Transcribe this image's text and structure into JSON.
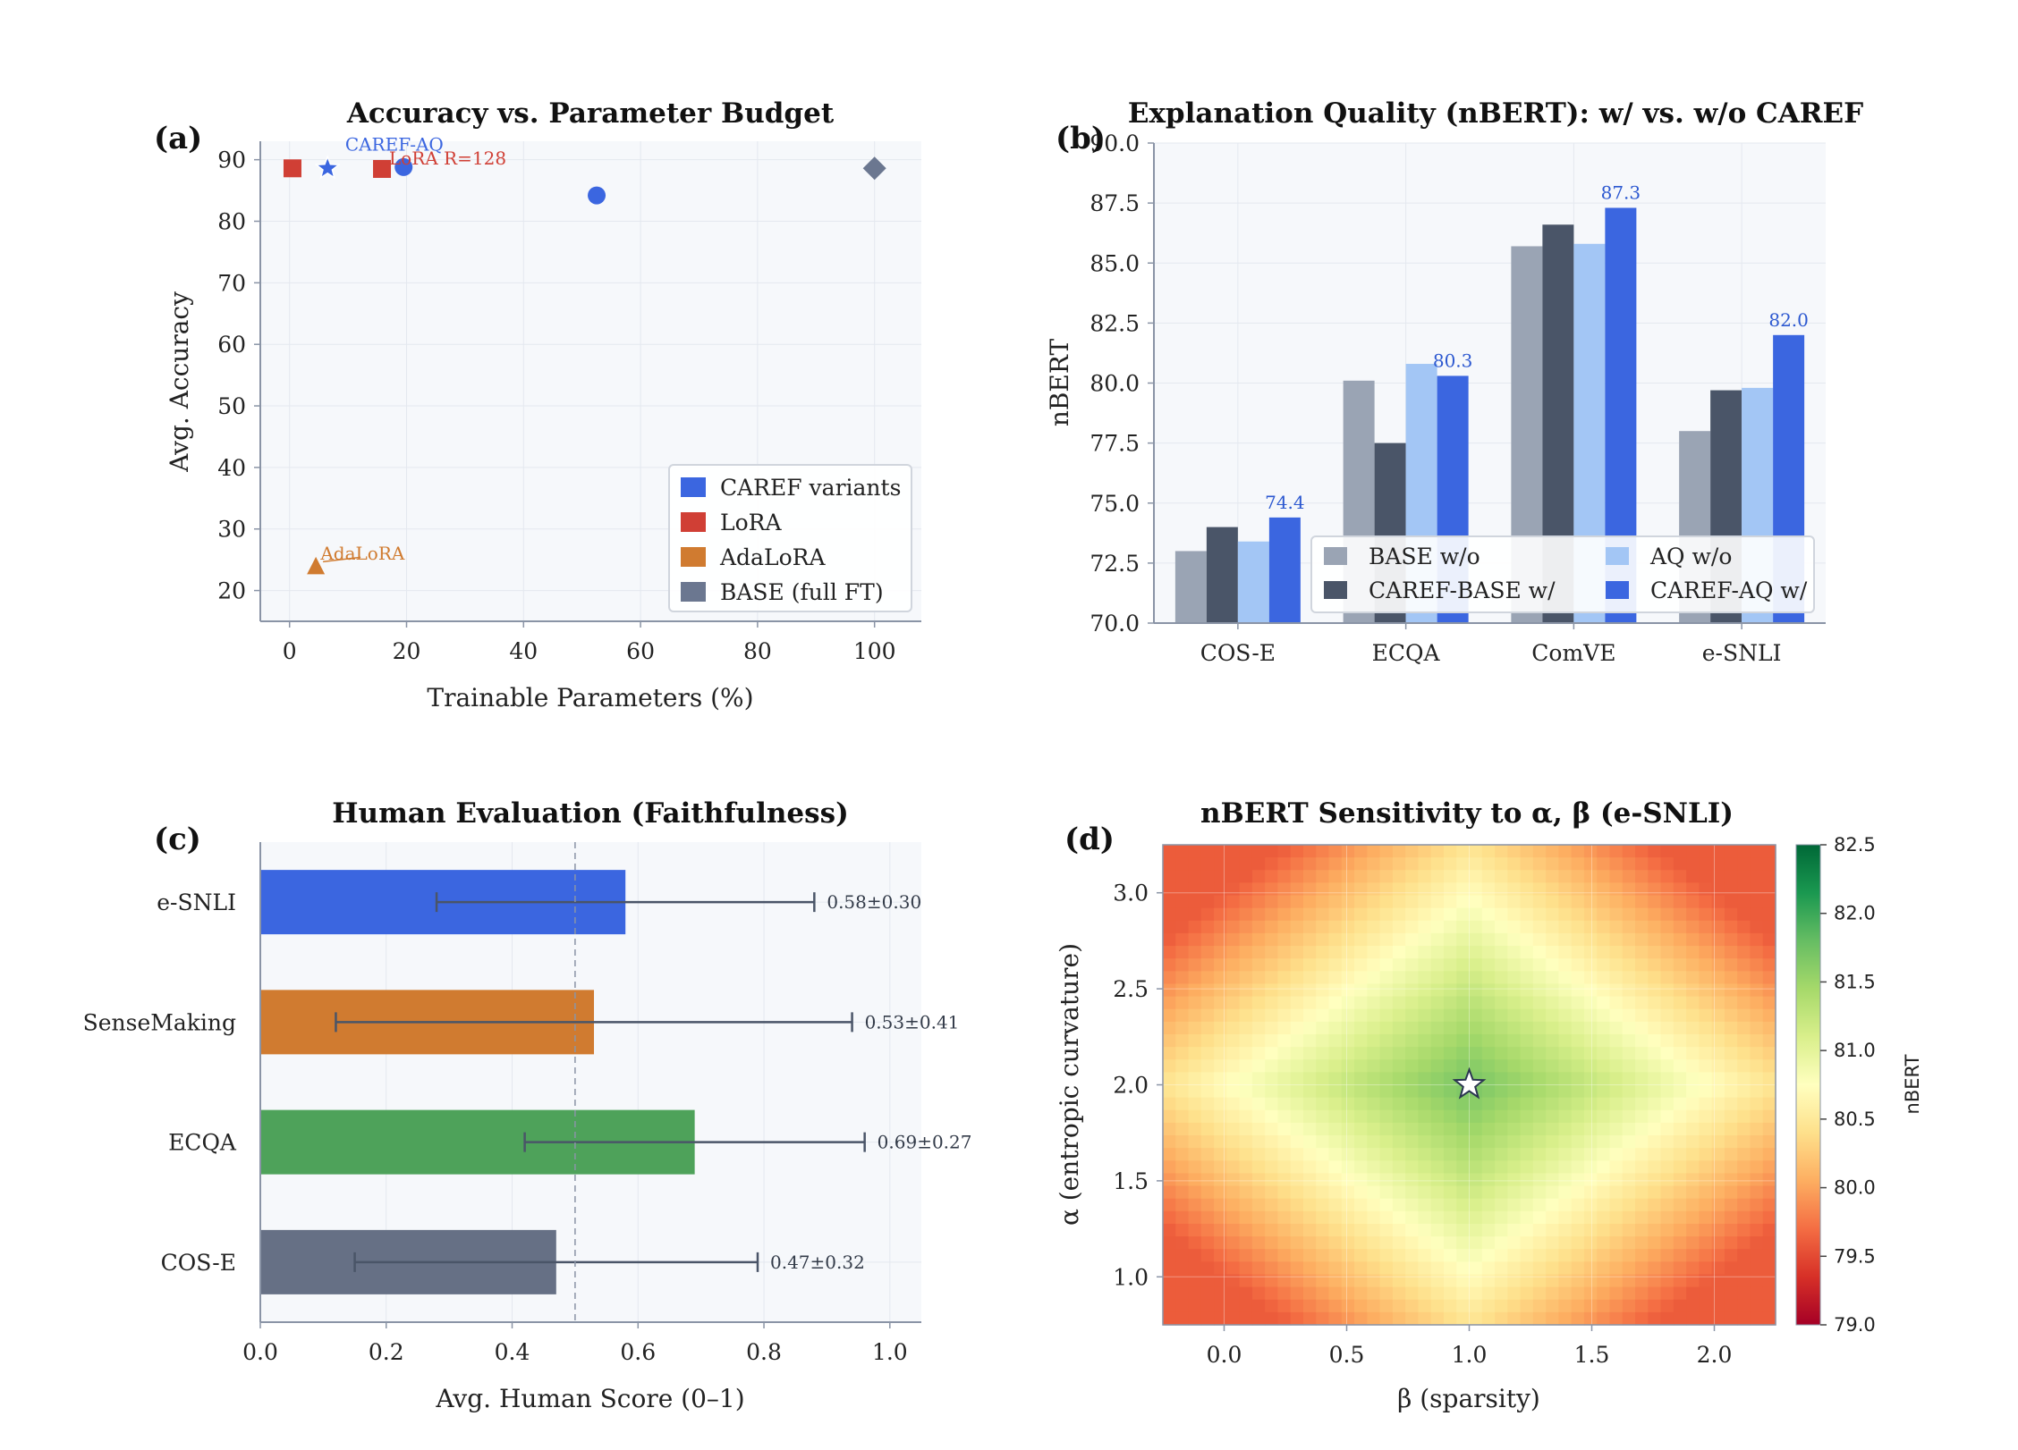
{
  "chart_data": [
    {
      "panel": "(a)",
      "type": "scatter",
      "title": "Accuracy vs. Parameter Budget",
      "xlabel": "Trainable Parameters (%)",
      "ylabel": "Avg. Accuracy",
      "xlim": [
        -5,
        108
      ],
      "ylim": [
        15,
        93
      ],
      "xticks": [
        0,
        20,
        40,
        60,
        80,
        100
      ],
      "yticks": [
        20,
        30,
        40,
        50,
        60,
        70,
        80,
        90
      ],
      "grid": true,
      "legend_position": "lower-right",
      "series": [
        {
          "name": "CAREF variants",
          "color": "#3b66e0",
          "marker": "circle",
          "points": [
            {
              "x": 19.5,
              "y": 88.8
            },
            {
              "x": 52.5,
              "y": 84.2
            }
          ]
        },
        {
          "name": "LoRA",
          "color": "#d03f35",
          "marker": "square",
          "points": [
            {
              "x": 0.5,
              "y": 88.6
            },
            {
              "x": 15.8,
              "y": 88.5
            }
          ]
        },
        {
          "name": "AdaLoRA",
          "color": "#d07b30",
          "marker": "triangle",
          "points": [
            {
              "x": 4.5,
              "y": 23.8
            }
          ]
        },
        {
          "name": "BASE (full FT)",
          "color": "#6b7790",
          "marker": "diamond",
          "points": [
            {
              "x": 100,
              "y": 88.6
            }
          ]
        }
      ],
      "highlight": {
        "label": "CAREF-AQ",
        "x": 6.5,
        "y": 88.6,
        "color": "#3b66e0"
      },
      "annotations": [
        {
          "text": "CAREF-AQ",
          "x": 9.5,
          "y": 91.5,
          "color": "#3b66e0"
        },
        {
          "text": "LoRA R=128",
          "x": 17,
          "y": 89.2,
          "color": "#d03f35"
        },
        {
          "text": "AdaLoRA",
          "x": 5.3,
          "y": 25.0,
          "color": "#d07b30"
        }
      ]
    },
    {
      "panel": "(b)",
      "type": "bar",
      "title": "Explanation Quality (nBERT): w/ vs. w/o CAREF",
      "xlabel": "",
      "ylabel": "nBERT",
      "categories": [
        "COS-E",
        "ECQA",
        "ComVE",
        "e-SNLI"
      ],
      "ylim": [
        70,
        90
      ],
      "yticks": [
        70.0,
        72.5,
        75.0,
        77.5,
        80.0,
        82.5,
        85.0,
        87.5,
        90.0
      ],
      "grid": true,
      "legend_position": "lower-right",
      "series": [
        {
          "name": "BASE w/o",
          "color": "#9aa4b4",
          "values": [
            73.0,
            80.1,
            85.7,
            78.0
          ]
        },
        {
          "name": "CAREF-BASE w/",
          "color": "#4a5568",
          "values": [
            74.0,
            77.5,
            86.6,
            79.7
          ]
        },
        {
          "name": "AQ w/o",
          "color": "#a3c6f5",
          "values": [
            73.4,
            80.8,
            85.8,
            79.8
          ]
        },
        {
          "name": "CAREF-AQ w/",
          "color": "#3b66e0",
          "values": [
            74.4,
            80.3,
            87.3,
            82.0
          ]
        }
      ],
      "value_labels": [
        "74.4",
        "80.3",
        "87.3",
        "82.0"
      ]
    },
    {
      "panel": "(c)",
      "type": "bar",
      "orientation": "horizontal",
      "title": "Human Evaluation (Faithfulness)",
      "xlabel": "Avg. Human Score (0–1)",
      "ylabel": "",
      "categories": [
        "e-SNLI",
        "SenseMaking",
        "ECQA",
        "COS-E"
      ],
      "values": [
        0.58,
        0.53,
        0.69,
        0.47
      ],
      "errors": [
        0.3,
        0.41,
        0.27,
        0.32
      ],
      "colors": [
        "#3b66e0",
        "#d07b30",
        "#4ea25a",
        "#667085"
      ],
      "value_labels": [
        "0.58±0.30",
        "0.53±0.41",
        "0.69±0.27",
        "0.47±0.32"
      ],
      "xlim": [
        0,
        1.05
      ],
      "xticks": [
        0.0,
        0.2,
        0.4,
        0.6,
        0.8,
        1.0
      ],
      "reference_line": 0.5,
      "grid": true
    },
    {
      "panel": "(d)",
      "type": "heatmap",
      "title": "nBERT Sensitivity to α, β (e-SNLI)",
      "xlabel": "β (sparsity)",
      "ylabel": "α (entropic curvature)",
      "xlim": [
        -0.25,
        2.25
      ],
      "ylim": [
        0.75,
        3.25
      ],
      "xticks": [
        0.0,
        0.5,
        1.0,
        1.5,
        2.0
      ],
      "yticks": [
        1.0,
        1.5,
        2.0,
        2.5,
        3.0
      ],
      "peak": {
        "beta": 1.0,
        "alpha": 2.0,
        "value": 81.7
      },
      "min_value_corner": 79.6,
      "colorbar": {
        "label": "nBERT",
        "min": 79.0,
        "max": 82.5,
        "ticks": [
          "82.5",
          "82.0",
          "81.5",
          "81.0",
          "80.5",
          "80.0",
          "79.5",
          "79.0"
        ]
      },
      "colormap": "RdYlGn"
    }
  ]
}
